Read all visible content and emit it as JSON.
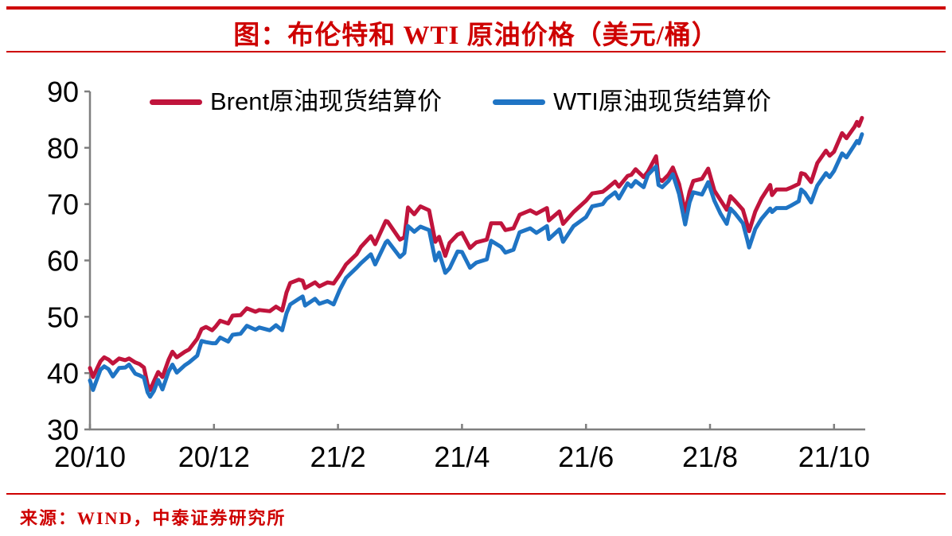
{
  "header": {
    "title": "图：布伦特和 WTI 原油价格（美元/桶）"
  },
  "footer": {
    "source": "来源：WIND，中泰证券研究所"
  },
  "colors": {
    "accent_red": "#CE0000",
    "brent_red": "#C0143C",
    "wti_blue": "#1F74C4",
    "axis_gray": "#7F7F7F"
  },
  "chart_data": {
    "type": "line",
    "title": "图：布伦特和 WTI 原油价格（美元/桶）",
    "xlabel": "",
    "ylabel": "",
    "ylim": [
      30,
      90
    ],
    "xlim_months": [
      0,
      12.6
    ],
    "grid": false,
    "legend_position": "top",
    "y_ticks": [
      30,
      40,
      50,
      60,
      70,
      80,
      90
    ],
    "x_ticks": [
      {
        "m": 0,
        "label": "20/10"
      },
      {
        "m": 2,
        "label": "20/12"
      },
      {
        "m": 4,
        "label": "21/2"
      },
      {
        "m": 6,
        "label": "21/4"
      },
      {
        "m": 8,
        "label": "21/6"
      },
      {
        "m": 10,
        "label": "21/8"
      },
      {
        "m": 12,
        "label": "21/10"
      }
    ],
    "series": [
      {
        "key": "brent",
        "name": "Brent原油现货结算价",
        "color": "#C0143C",
        "points": [
          [
            0.0,
            40.9
          ],
          [
            0.05,
            39.3
          ],
          [
            0.17,
            42.1
          ],
          [
            0.23,
            42.8
          ],
          [
            0.3,
            42.4
          ],
          [
            0.37,
            41.7
          ],
          [
            0.47,
            42.6
          ],
          [
            0.57,
            42.3
          ],
          [
            0.63,
            42.6
          ],
          [
            0.73,
            41.9
          ],
          [
            0.8,
            41.6
          ],
          [
            0.87,
            41.0
          ],
          [
            0.93,
            38.0
          ],
          [
            0.97,
            37.0
          ],
          [
            1.03,
            38.5
          ],
          [
            1.1,
            40.2
          ],
          [
            1.17,
            39.3
          ],
          [
            1.27,
            42.4
          ],
          [
            1.33,
            43.8
          ],
          [
            1.4,
            42.8
          ],
          [
            1.53,
            43.8
          ],
          [
            1.6,
            44.2
          ],
          [
            1.73,
            46.1
          ],
          [
            1.8,
            47.8
          ],
          [
            1.87,
            48.2
          ],
          [
            1.97,
            47.6
          ],
          [
            2.03,
            48.3
          ],
          [
            2.1,
            49.3
          ],
          [
            2.23,
            48.8
          ],
          [
            2.3,
            50.2
          ],
          [
            2.43,
            50.3
          ],
          [
            2.53,
            51.5
          ],
          [
            2.67,
            50.9
          ],
          [
            2.73,
            51.2
          ],
          [
            2.9,
            51.0
          ],
          [
            3.0,
            51.8
          ],
          [
            3.1,
            51.1
          ],
          [
            3.17,
            54.3
          ],
          [
            3.23,
            56.0
          ],
          [
            3.37,
            56.6
          ],
          [
            3.43,
            56.4
          ],
          [
            3.47,
            55.1
          ],
          [
            3.63,
            56.1
          ],
          [
            3.7,
            55.4
          ],
          [
            3.83,
            56.1
          ],
          [
            3.93,
            55.9
          ],
          [
            4.03,
            57.5
          ],
          [
            4.13,
            59.3
          ],
          [
            4.3,
            61.1
          ],
          [
            4.37,
            62.4
          ],
          [
            4.53,
            64.3
          ],
          [
            4.6,
            62.9
          ],
          [
            4.77,
            67.0
          ],
          [
            4.8,
            66.9
          ],
          [
            5.0,
            63.7
          ],
          [
            5.07,
            64.1
          ],
          [
            5.13,
            69.4
          ],
          [
            5.23,
            68.2
          ],
          [
            5.33,
            69.6
          ],
          [
            5.47,
            68.9
          ],
          [
            5.57,
            63.3
          ],
          [
            5.63,
            64.2
          ],
          [
            5.73,
            60.8
          ],
          [
            5.8,
            63.1
          ],
          [
            5.93,
            64.6
          ],
          [
            6.0,
            64.9
          ],
          [
            6.13,
            62.2
          ],
          [
            6.23,
            63.2
          ],
          [
            6.4,
            63.7
          ],
          [
            6.47,
            66.6
          ],
          [
            6.63,
            66.6
          ],
          [
            6.7,
            65.4
          ],
          [
            6.83,
            65.7
          ],
          [
            6.93,
            68.1
          ],
          [
            7.1,
            68.9
          ],
          [
            7.2,
            68.3
          ],
          [
            7.37,
            69.3
          ],
          [
            7.4,
            67.1
          ],
          [
            7.57,
            68.7
          ],
          [
            7.63,
            66.5
          ],
          [
            7.8,
            68.6
          ],
          [
            7.9,
            69.6
          ],
          [
            8.0,
            70.6
          ],
          [
            8.1,
            71.9
          ],
          [
            8.27,
            72.2
          ],
          [
            8.33,
            72.7
          ],
          [
            8.47,
            74.0
          ],
          [
            8.53,
            73.1
          ],
          [
            8.67,
            75.0
          ],
          [
            8.73,
            75.2
          ],
          [
            8.8,
            76.2
          ],
          [
            8.93,
            74.8
          ],
          [
            9.0,
            75.8
          ],
          [
            9.13,
            78.5
          ],
          [
            9.17,
            74.5
          ],
          [
            9.23,
            74.1
          ],
          [
            9.33,
            75.2
          ],
          [
            9.4,
            76.5
          ],
          [
            9.5,
            73.6
          ],
          [
            9.6,
            68.6
          ],
          [
            9.67,
            72.2
          ],
          [
            9.73,
            74.1
          ],
          [
            9.87,
            74.5
          ],
          [
            9.97,
            76.3
          ],
          [
            10.07,
            72.4
          ],
          [
            10.17,
            70.7
          ],
          [
            10.27,
            69.0
          ],
          [
            10.33,
            71.4
          ],
          [
            10.4,
            70.6
          ],
          [
            10.53,
            69.0
          ],
          [
            10.6,
            66.4
          ],
          [
            10.63,
            65.2
          ],
          [
            10.73,
            68.7
          ],
          [
            10.83,
            71.0
          ],
          [
            10.97,
            73.4
          ],
          [
            11.0,
            71.6
          ],
          [
            11.07,
            72.6
          ],
          [
            11.23,
            72.6
          ],
          [
            11.3,
            72.9
          ],
          [
            11.43,
            73.6
          ],
          [
            11.47,
            75.5
          ],
          [
            11.53,
            75.3
          ],
          [
            11.63,
            73.9
          ],
          [
            11.73,
            77.3
          ],
          [
            11.87,
            79.5
          ],
          [
            11.93,
            78.6
          ],
          [
            12.0,
            79.3
          ],
          [
            12.13,
            82.6
          ],
          [
            12.2,
            81.7
          ],
          [
            12.33,
            83.7
          ],
          [
            12.37,
            84.6
          ],
          [
            12.4,
            83.9
          ],
          [
            12.45,
            85.3
          ]
        ]
      },
      {
        "key": "wti",
        "name": "WTI原油现货结算价",
        "color": "#1F74C4",
        "points": [
          [
            0.0,
            38.7
          ],
          [
            0.05,
            37.0
          ],
          [
            0.17,
            40.6
          ],
          [
            0.23,
            41.2
          ],
          [
            0.3,
            40.7
          ],
          [
            0.37,
            39.4
          ],
          [
            0.47,
            40.9
          ],
          [
            0.57,
            41.0
          ],
          [
            0.63,
            41.5
          ],
          [
            0.73,
            39.9
          ],
          [
            0.8,
            39.6
          ],
          [
            0.87,
            39.2
          ],
          [
            0.93,
            36.6
          ],
          [
            0.97,
            35.8
          ],
          [
            1.03,
            36.8
          ],
          [
            1.1,
            38.8
          ],
          [
            1.17,
            37.1
          ],
          [
            1.27,
            40.3
          ],
          [
            1.33,
            41.5
          ],
          [
            1.4,
            40.1
          ],
          [
            1.53,
            41.4
          ],
          [
            1.6,
            41.9
          ],
          [
            1.73,
            43.1
          ],
          [
            1.8,
            45.7
          ],
          [
            1.87,
            45.5
          ],
          [
            1.97,
            45.3
          ],
          [
            2.03,
            45.3
          ],
          [
            2.1,
            46.3
          ],
          [
            2.23,
            45.6
          ],
          [
            2.3,
            46.8
          ],
          [
            2.43,
            47.0
          ],
          [
            2.53,
            48.4
          ],
          [
            2.67,
            47.7
          ],
          [
            2.73,
            48.1
          ],
          [
            2.9,
            47.6
          ],
          [
            3.0,
            48.5
          ],
          [
            3.1,
            47.6
          ],
          [
            3.17,
            50.6
          ],
          [
            3.23,
            52.2
          ],
          [
            3.37,
            53.2
          ],
          [
            3.43,
            53.6
          ],
          [
            3.47,
            52.0
          ],
          [
            3.63,
            53.2
          ],
          [
            3.7,
            52.3
          ],
          [
            3.83,
            52.8
          ],
          [
            3.93,
            52.2
          ],
          [
            4.03,
            54.8
          ],
          [
            4.13,
            56.9
          ],
          [
            4.3,
            58.7
          ],
          [
            4.37,
            59.5
          ],
          [
            4.53,
            61.1
          ],
          [
            4.6,
            59.3
          ],
          [
            4.77,
            63.2
          ],
          [
            4.8,
            63.5
          ],
          [
            5.0,
            60.6
          ],
          [
            5.07,
            61.3
          ],
          [
            5.13,
            66.1
          ],
          [
            5.23,
            65.1
          ],
          [
            5.33,
            66.0
          ],
          [
            5.47,
            65.4
          ],
          [
            5.57,
            60.0
          ],
          [
            5.63,
            61.4
          ],
          [
            5.73,
            57.8
          ],
          [
            5.8,
            58.6
          ],
          [
            5.93,
            61.6
          ],
          [
            6.0,
            61.5
          ],
          [
            6.13,
            58.7
          ],
          [
            6.23,
            59.6
          ],
          [
            6.4,
            60.2
          ],
          [
            6.47,
            63.5
          ],
          [
            6.63,
            62.4
          ],
          [
            6.7,
            61.4
          ],
          [
            6.83,
            61.9
          ],
          [
            6.93,
            65.0
          ],
          [
            7.1,
            65.7
          ],
          [
            7.2,
            64.9
          ],
          [
            7.37,
            66.1
          ],
          [
            7.4,
            63.8
          ],
          [
            7.57,
            65.5
          ],
          [
            7.63,
            63.3
          ],
          [
            7.8,
            66.1
          ],
          [
            7.9,
            66.9
          ],
          [
            8.0,
            67.7
          ],
          [
            8.1,
            69.6
          ],
          [
            8.27,
            70.0
          ],
          [
            8.33,
            70.9
          ],
          [
            8.47,
            72.1
          ],
          [
            8.53,
            71.0
          ],
          [
            8.67,
            73.7
          ],
          [
            8.73,
            73.1
          ],
          [
            8.8,
            74.1
          ],
          [
            8.93,
            73.0
          ],
          [
            9.0,
            75.2
          ],
          [
            9.13,
            76.7
          ],
          [
            9.17,
            73.4
          ],
          [
            9.23,
            73.0
          ],
          [
            9.33,
            74.1
          ],
          [
            9.4,
            75.3
          ],
          [
            9.5,
            71.8
          ],
          [
            9.6,
            66.4
          ],
          [
            9.67,
            70.3
          ],
          [
            9.73,
            72.1
          ],
          [
            9.87,
            71.7
          ],
          [
            9.97,
            73.9
          ],
          [
            10.07,
            70.6
          ],
          [
            10.17,
            68.3
          ],
          [
            10.27,
            66.5
          ],
          [
            10.33,
            69.2
          ],
          [
            10.4,
            68.4
          ],
          [
            10.53,
            66.6
          ],
          [
            10.6,
            63.7
          ],
          [
            10.63,
            62.3
          ],
          [
            10.73,
            65.6
          ],
          [
            10.83,
            67.4
          ],
          [
            10.97,
            69.2
          ],
          [
            11.0,
            68.6
          ],
          [
            11.07,
            69.3
          ],
          [
            11.23,
            69.3
          ],
          [
            11.3,
            69.7
          ],
          [
            11.43,
            70.5
          ],
          [
            11.47,
            72.6
          ],
          [
            11.53,
            72.0
          ],
          [
            11.63,
            70.3
          ],
          [
            11.73,
            73.3
          ],
          [
            11.87,
            75.5
          ],
          [
            11.93,
            74.8
          ],
          [
            12.0,
            75.9
          ],
          [
            12.13,
            79.0
          ],
          [
            12.2,
            78.3
          ],
          [
            12.33,
            80.5
          ],
          [
            12.37,
            81.2
          ],
          [
            12.4,
            80.8
          ],
          [
            12.45,
            82.4
          ]
        ]
      }
    ]
  }
}
